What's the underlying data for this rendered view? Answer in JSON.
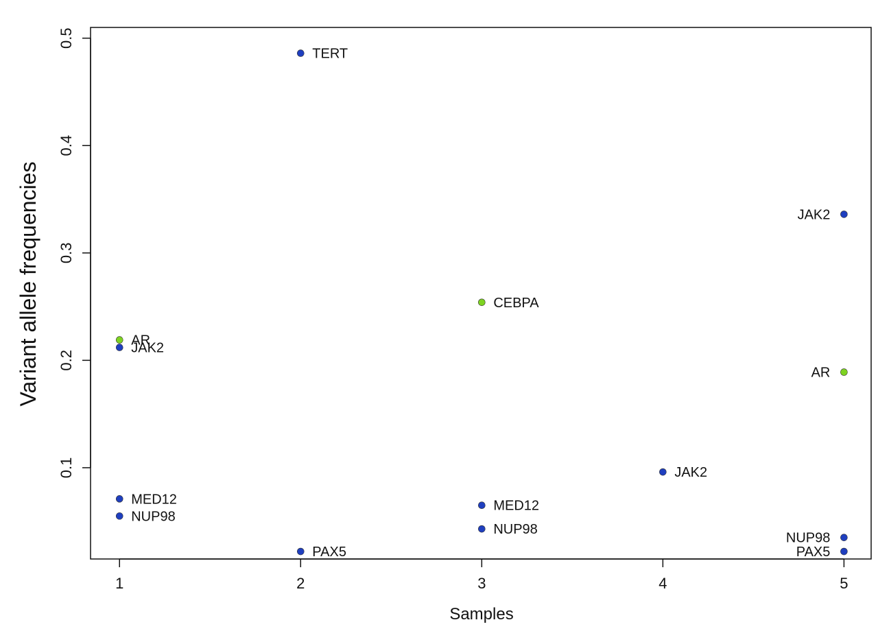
{
  "chart_data": {
    "type": "scatter",
    "title": "",
    "xlabel": "Samples",
    "ylabel": "Variant allele frequencies",
    "xlim": [
      0.84,
      5.15
    ],
    "ylim": [
      0.015,
      0.51
    ],
    "x_ticks": [
      1,
      2,
      3,
      4,
      5
    ],
    "y_ticks": [
      0.1,
      0.2,
      0.3,
      0.4,
      0.5
    ],
    "x_tick_labels": [
      "1",
      "2",
      "3",
      "4",
      "5"
    ],
    "y_tick_labels": [
      "0.1",
      "0.2",
      "0.3",
      "0.4",
      "0.5"
    ],
    "grid": false,
    "colors": {
      "blue": "#1f3fbf",
      "green": "#7ed321"
    },
    "points": [
      {
        "x": 1,
        "y": 0.219,
        "label": "AR",
        "color": "green",
        "label_side": "right"
      },
      {
        "x": 1,
        "y": 0.212,
        "label": "JAK2",
        "color": "blue",
        "label_side": "right"
      },
      {
        "x": 1,
        "y": 0.071,
        "label": "MED12",
        "color": "blue",
        "label_side": "right"
      },
      {
        "x": 1,
        "y": 0.055,
        "label": "NUP98",
        "color": "blue",
        "label_side": "right"
      },
      {
        "x": 2,
        "y": 0.486,
        "label": "TERT",
        "color": "blue",
        "label_side": "right"
      },
      {
        "x": 2,
        "y": 0.022,
        "label": "PAX5",
        "color": "blue",
        "label_side": "right"
      },
      {
        "x": 3,
        "y": 0.254,
        "label": "CEBPA",
        "color": "green",
        "label_side": "right"
      },
      {
        "x": 3,
        "y": 0.065,
        "label": "MED12",
        "color": "blue",
        "label_side": "right"
      },
      {
        "x": 3,
        "y": 0.043,
        "label": "NUP98",
        "color": "blue",
        "label_side": "right"
      },
      {
        "x": 4,
        "y": 0.096,
        "label": "JAK2",
        "color": "blue",
        "label_side": "right"
      },
      {
        "x": 5,
        "y": 0.336,
        "label": "JAK2",
        "color": "blue",
        "label_side": "left"
      },
      {
        "x": 5,
        "y": 0.189,
        "label": "AR",
        "color": "green",
        "label_side": "left"
      },
      {
        "x": 5,
        "y": 0.035,
        "label": "NUP98",
        "color": "blue",
        "label_side": "left"
      },
      {
        "x": 5,
        "y": 0.022,
        "label": "PAX5",
        "color": "blue",
        "label_side": "left"
      }
    ]
  }
}
